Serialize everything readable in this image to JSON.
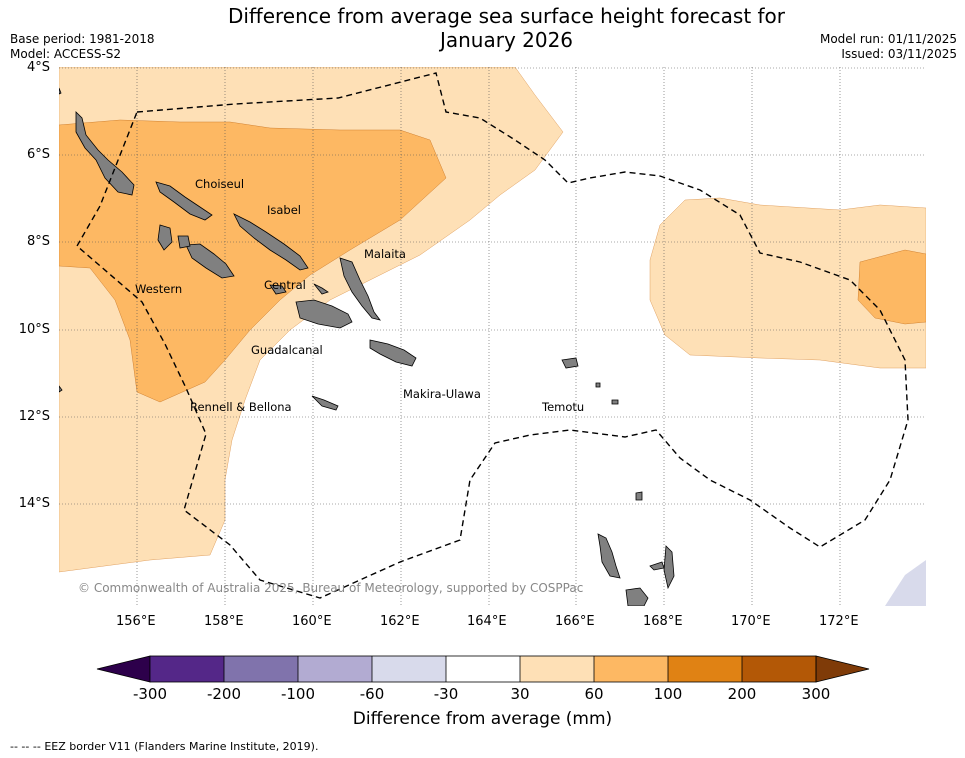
{
  "header": {
    "title_line1": "Difference from average sea surface height forecast for",
    "title_line2": "January 2026",
    "base_period": "Base period: 1981-2018",
    "model": "Model: ACCESS-S2",
    "model_run": "Model run: 01/11/2025",
    "issued": "Issued: 03/11/2025"
  },
  "map": {
    "lat_labels": [
      "4°S",
      "6°S",
      "8°S",
      "10°S",
      "12°S",
      "14°S"
    ],
    "lon_labels": [
      "156°E",
      "158°E",
      "160°E",
      "162°E",
      "164°E",
      "166°E",
      "168°E",
      "170°E",
      "172°E"
    ],
    "places": [
      "Choiseul",
      "Isabel",
      "Malaita",
      "Western",
      "Central",
      "Guadalcanal",
      "Rennell & Bellona",
      "Makira-Ulawa",
      "Temotu"
    ],
    "copyright": "© Commonwealth of Australia 2025, Bureau of Meteorology, supported by COSPPac",
    "colors": {
      "land": "#808080",
      "c30_60": "#fee0b6",
      "c60_100": "#fdb863",
      "cneg": "#d8daeb"
    }
  },
  "colorbar": {
    "label": "Difference from average (mm)",
    "ticks": [
      "-300",
      "-200",
      "-100",
      "-60",
      "-30",
      "30",
      "60",
      "100",
      "200",
      "300"
    ],
    "colors": [
      "#2d004b",
      "#542788",
      "#8073ac",
      "#b2abd2",
      "#d8daeb",
      "#ffffff",
      "#fee0b6",
      "#fdb863",
      "#e08214",
      "#b35806",
      "#7f3b08"
    ]
  },
  "footer": {
    "eez_symbol": "-- -- --",
    "eez_label": "EEZ border V11 (Flanders Marine Institute, 2019)."
  }
}
